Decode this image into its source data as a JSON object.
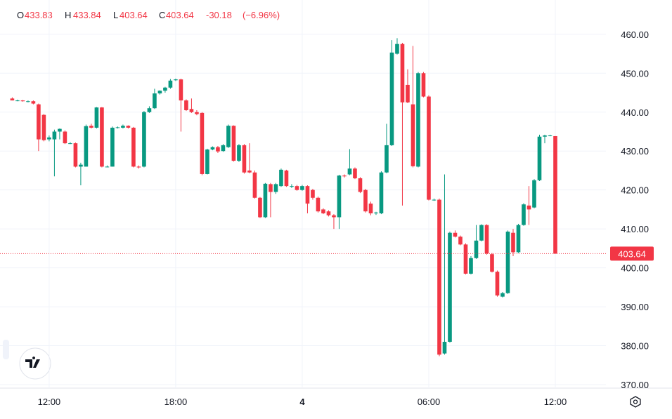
{
  "chart_data": {
    "type": "candlestick",
    "legend": {
      "open_label": "O",
      "open": "433.83",
      "high_label": "H",
      "high": "433.84",
      "low_label": "L",
      "low": "403.64",
      "close_label": "C",
      "close": "403.64",
      "change": "-30.18",
      "change_pct": "(−6.96%)"
    },
    "up_color": "#089981",
    "down_color": "#f23645",
    "xlim": [
      9.67,
      38.4
    ],
    "xticks": [
      {
        "value": 12,
        "label": "12:00"
      },
      {
        "value": 18,
        "label": "18:00"
      },
      {
        "value": 24,
        "label": "4"
      },
      {
        "value": 30,
        "label": "06:00"
      },
      {
        "value": 36,
        "label": "12:00"
      }
    ],
    "ylim": [
      369.1,
      467.0
    ],
    "yticks": [
      {
        "value": 370,
        "label": "370.00"
      },
      {
        "value": 380,
        "label": "380.00"
      },
      {
        "value": 390,
        "label": "390.00"
      },
      {
        "value": 400,
        "label": "400.00"
      },
      {
        "value": 410,
        "label": "410.00"
      },
      {
        "value": 420,
        "label": "420.00"
      },
      {
        "value": 430,
        "label": "430.00"
      },
      {
        "value": 440,
        "label": "440.00"
      },
      {
        "value": 450,
        "label": "450.00"
      },
      {
        "value": 460,
        "label": "460.00"
      }
    ],
    "last_price": 403.64,
    "grid": true,
    "x": [
      10.25,
      10.5,
      10.75,
      11,
      11.25,
      11.5,
      11.75,
      12,
      12.25,
      12.5,
      12.75,
      13,
      13.25,
      13.5,
      13.75,
      14,
      14.25,
      14.5,
      14.75,
      15,
      15.25,
      15.5,
      15.75,
      16,
      16.25,
      16.5,
      16.75,
      17,
      17.25,
      17.5,
      17.75,
      18,
      18.25,
      18.5,
      18.75,
      19,
      19.25,
      19.5,
      19.75,
      20,
      20.25,
      20.5,
      20.75,
      21,
      21.25,
      21.5,
      21.75,
      22,
      22.25,
      22.5,
      22.75,
      23,
      23.25,
      23.5,
      23.75,
      24,
      24.25,
      24.5,
      24.75,
      25,
      25.25,
      25.5,
      25.75,
      26,
      26.25,
      26.5,
      26.75,
      27,
      27.25,
      27.5,
      27.75,
      28,
      28.25,
      28.5,
      28.75,
      29,
      29.25,
      29.5,
      29.75,
      30,
      30.25,
      30.5,
      30.75,
      31,
      31.25,
      31.5,
      31.75,
      32,
      32.25,
      32.5,
      32.75,
      33,
      33.25,
      33.5,
      33.75,
      34,
      34.25,
      34.5,
      34.75,
      35,
      35.25,
      35.5,
      35.75,
      36
    ],
    "open": [
      443.5,
      443,
      443,
      442.8,
      442.8,
      442,
      439.3,
      433,
      433,
      435,
      435,
      432,
      432,
      426,
      426,
      436.5,
      436,
      441.2,
      426,
      426,
      436,
      436,
      436.5,
      436,
      426,
      426,
      440,
      441,
      444.8,
      445.5,
      446.3,
      448.2,
      448.4,
      443,
      440.8,
      440,
      439.8,
      424.1,
      430.4,
      431,
      430,
      431,
      436.5,
      427.5,
      431.5,
      425,
      424.5,
      418,
      413,
      421.5,
      419.5,
      421,
      425,
      421,
      421,
      420,
      421,
      420,
      418,
      415,
      414.5,
      413.5,
      413,
      423.7,
      424,
      425.5,
      423,
      420,
      416.5,
      414,
      414,
      424.5,
      431.5,
      455,
      457.5,
      447,
      442,
      426,
      450,
      444,
      417.5,
      417.5,
      378,
      381,
      409,
      408,
      406,
      398.5,
      402.5,
      407,
      411,
      403.5,
      399,
      392.6,
      393.5,
      409,
      404,
      411,
      416,
      415.5,
      422.5,
      433.7,
      434,
      433.83
    ],
    "high": [
      443.8,
      443.2,
      443.1,
      443,
      443,
      442.2,
      439.5,
      434,
      435.5,
      435.8,
      435.3,
      432.3,
      432.2,
      427,
      436.8,
      437,
      441.3,
      441.3,
      426.3,
      436.3,
      436.3,
      436.8,
      436.6,
      436.2,
      426.3,
      440.3,
      441.5,
      446,
      445.6,
      446.5,
      448.5,
      448.6,
      448.6,
      443.3,
      443.5,
      440.5,
      440,
      430.6,
      431.2,
      431.3,
      431.8,
      436.8,
      436.6,
      431.8,
      431.8,
      432,
      425,
      418.2,
      421.8,
      421.8,
      421.8,
      425.5,
      425.2,
      421.5,
      421.3,
      421.3,
      421.2,
      420.3,
      418.3,
      415.3,
      414.8,
      413.8,
      423.9,
      424,
      430.5,
      425.8,
      423.3,
      420.3,
      417,
      414.4,
      424.8,
      437,
      458.5,
      459,
      457.8,
      451,
      457,
      450.3,
      450.3,
      444.3,
      417.8,
      417.8,
      424,
      409.3,
      409.6,
      408.3,
      406.3,
      403,
      411,
      411.2,
      411.2,
      403.8,
      399.3,
      393.8,
      409.6,
      410,
      411.3,
      416.6,
      421,
      422.8,
      434.2,
      434.2,
      434.2,
      433.84
    ],
    "low": [
      443,
      442.8,
      442.7,
      442.5,
      442,
      430,
      432.5,
      432.5,
      423.5,
      433,
      431.8,
      431.8,
      425.8,
      421.2,
      426,
      435.8,
      435.8,
      425.8,
      425.8,
      426,
      435.8,
      435.8,
      435.8,
      425.8,
      425.5,
      425.8,
      439.8,
      440.8,
      444.5,
      445,
      446,
      448,
      435,
      440.3,
      439.8,
      439.2,
      423.8,
      424,
      430.2,
      429.5,
      429.8,
      430.8,
      427.3,
      427.2,
      424.2,
      424.3,
      417.8,
      412.8,
      412.8,
      413,
      419,
      420.8,
      420.8,
      420.5,
      419.8,
      419.8,
      414,
      417.5,
      414.2,
      413.8,
      413.2,
      410,
      410,
      423.2,
      423.8,
      422.8,
      419.2,
      414.2,
      413.5,
      413.6,
      413.8,
      424.3,
      431.3,
      454.8,
      416,
      442.3,
      425.8,
      425.8,
      443.8,
      417.3,
      417.2,
      377.3,
      377.7,
      380.8,
      407.8,
      405.8,
      398.3,
      398.3,
      402.3,
      406.8,
      403.4,
      398.8,
      392.6,
      392.4,
      393.3,
      403,
      403.8,
      410.8,
      411,
      415.3,
      422.3,
      432,
      433.8,
      403.64
    ],
    "close": [
      443,
      443,
      442.8,
      442.8,
      442.2,
      433,
      432.8,
      433.5,
      435,
      435.7,
      432,
      432,
      426,
      426.5,
      436.4,
      436,
      441.2,
      426,
      426,
      436,
      436.1,
      436.5,
      436,
      426,
      425.8,
      440,
      441,
      444.8,
      445.5,
      446.3,
      448.1,
      448.4,
      443,
      440.5,
      440,
      439.5,
      424.1,
      430.4,
      431,
      429.9,
      431.5,
      436.5,
      427.5,
      431.5,
      424.5,
      424.5,
      418,
      413,
      421.6,
      419.5,
      421.5,
      425.2,
      421,
      421,
      420,
      421,
      416.5,
      418,
      414.5,
      414,
      413.5,
      413,
      423.7,
      423.5,
      425.5,
      423,
      419.5,
      414.5,
      414,
      414.2,
      424.5,
      431.5,
      455.3,
      457.5,
      442.5,
      442.5,
      426.1,
      450,
      444,
      417.5,
      417.5,
      377.7,
      381,
      409,
      408,
      406,
      398.5,
      402.5,
      407,
      411,
      403.7,
      399,
      392.9,
      393.5,
      409.3,
      404,
      411,
      416.3,
      415,
      422.5,
      433.7,
      434,
      434,
      403.64
    ]
  }
}
